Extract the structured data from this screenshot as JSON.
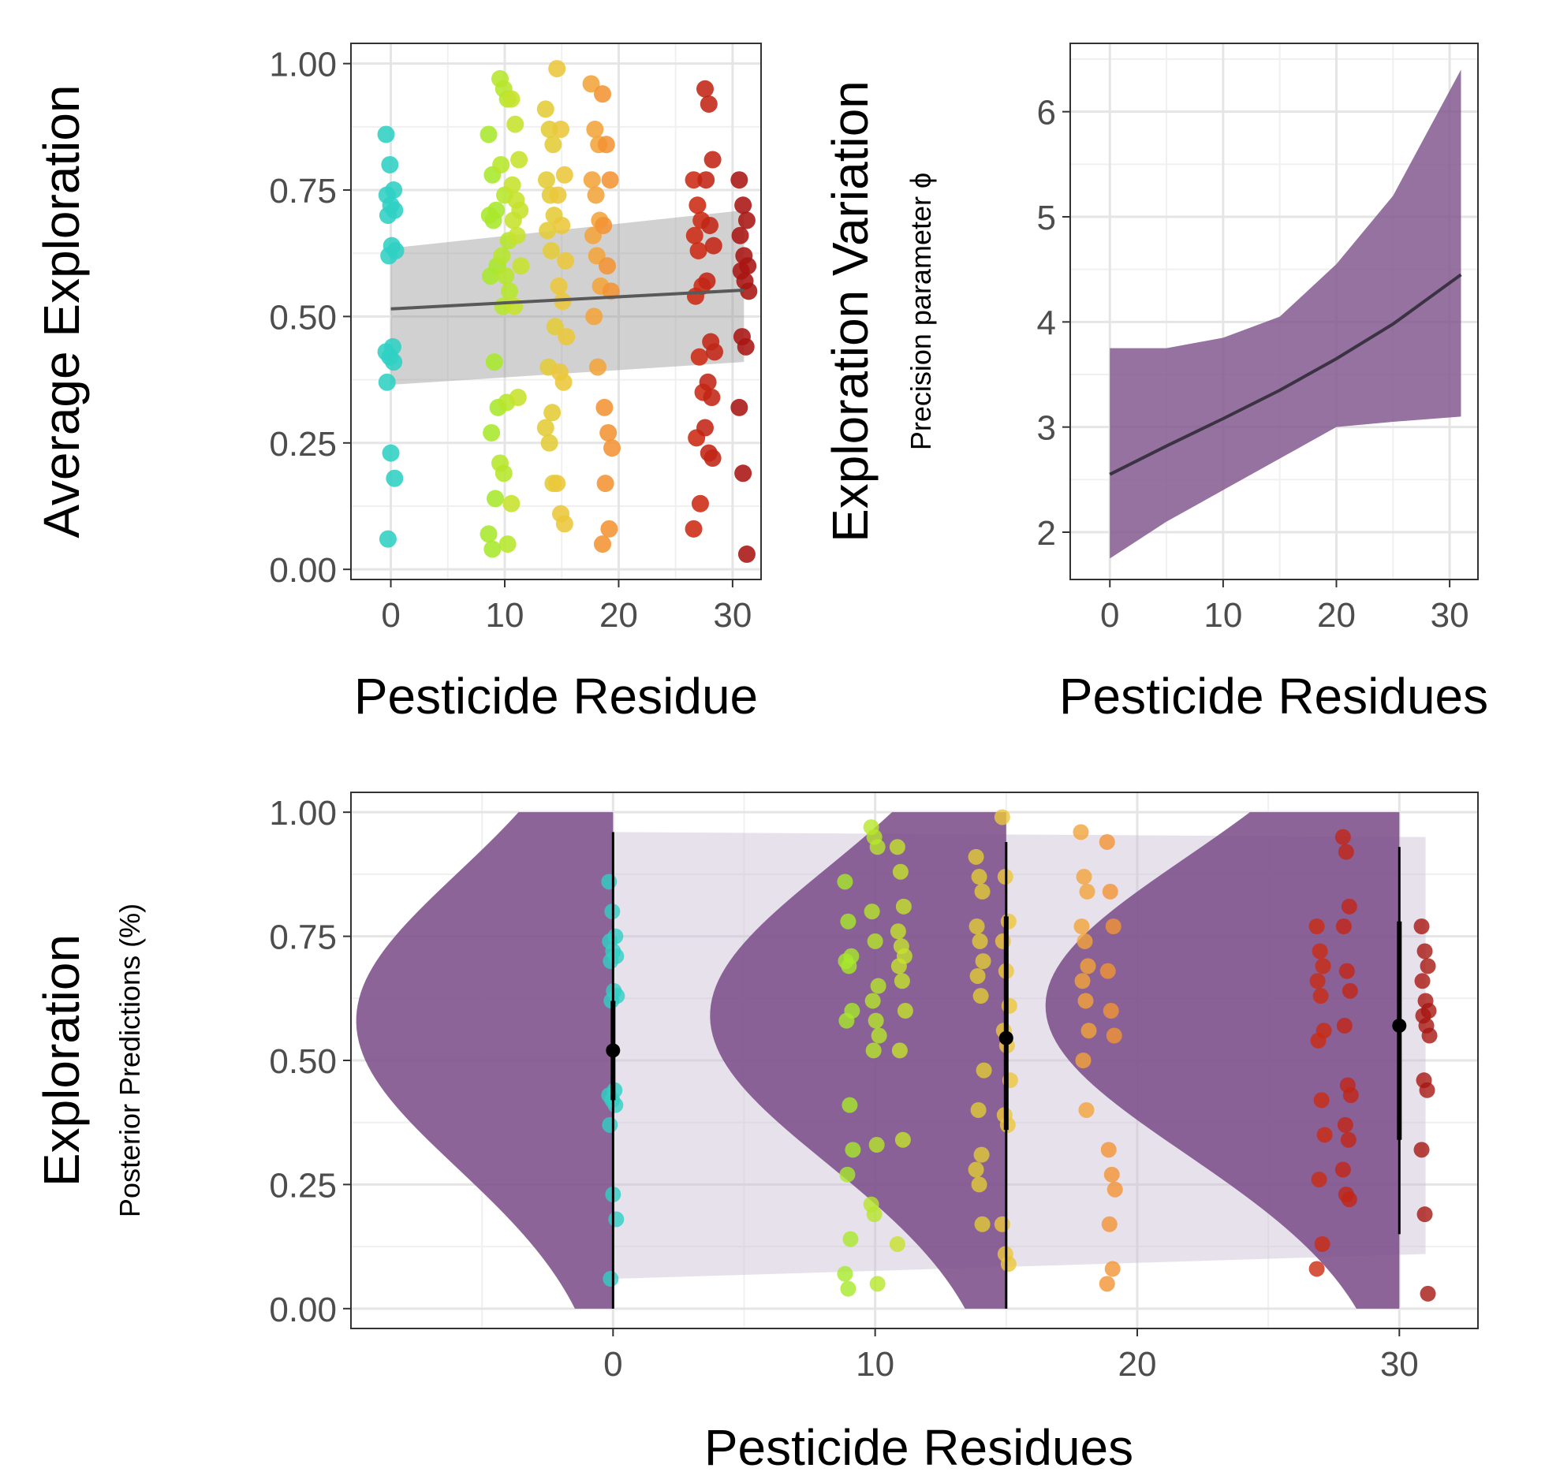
{
  "chart_data": [
    {
      "id": "avg_exploration",
      "type": "scatter",
      "xlabel": "Pesticide Residue",
      "ylabel": "Average Exploration",
      "xlim": [
        -3.5,
        32.5
      ],
      "ylim": [
        -0.02,
        1.04
      ],
      "xticks": [
        0,
        10,
        20,
        30
      ],
      "xtick_labels": [
        "0",
        "10",
        "20",
        "30"
      ],
      "yticks": [
        0,
        0.25,
        0.5,
        0.75,
        1.0
      ],
      "ytick_labels": [
        "0.00",
        "0.25",
        "0.50",
        "0.75",
        "1.00"
      ],
      "grid": true,
      "points": [
        {
          "x": 0,
          "ys": [
            0.86,
            0.8,
            0.75,
            0.74,
            0.72,
            0.71,
            0.7,
            0.64,
            0.63,
            0.62,
            0.44,
            0.43,
            0.42,
            0.41,
            0.37,
            0.23,
            0.18,
            0.06
          ],
          "color": "#2fd0c4"
        },
        {
          "x": 9,
          "ys": [
            0.86,
            0.78,
            0.71,
            0.7,
            0.69,
            0.6,
            0.58,
            0.41,
            0.32,
            0.27,
            0.14,
            0.07,
            0.04
          ],
          "color": "#a8e82c"
        },
        {
          "x": 10,
          "ys": [
            0.97,
            0.95,
            0.93,
            0.8,
            0.74,
            0.65,
            0.62,
            0.58,
            0.55,
            0.52,
            0.33,
            0.21,
            0.19,
            0.05
          ],
          "color": "#b6e62a"
        },
        {
          "x": 11,
          "ys": [
            0.93,
            0.88,
            0.81,
            0.76,
            0.73,
            0.71,
            0.69,
            0.66,
            0.6,
            0.52,
            0.34,
            0.13
          ],
          "color": "#c6e22c"
        },
        {
          "x": 14,
          "ys": [
            0.91,
            0.87,
            0.84,
            0.77,
            0.74,
            0.7,
            0.67,
            0.63,
            0.48,
            0.4,
            0.31,
            0.28,
            0.25,
            0.17
          ],
          "color": "#e2cc36"
        },
        {
          "x": 15,
          "ys": [
            0.99,
            0.87,
            0.78,
            0.74,
            0.68,
            0.61,
            0.56,
            0.53,
            0.46,
            0.39,
            0.37,
            0.17,
            0.11,
            0.09
          ],
          "color": "#ecc73a"
        },
        {
          "x": 18,
          "ys": [
            0.96,
            0.87,
            0.84,
            0.77,
            0.74,
            0.69,
            0.66,
            0.62,
            0.56,
            0.5,
            0.4
          ],
          "color": "#f2a43a"
        },
        {
          "x": 19,
          "ys": [
            0.94,
            0.84,
            0.77,
            0.68,
            0.6,
            0.55,
            0.32,
            0.27,
            0.24,
            0.17,
            0.08,
            0.05
          ],
          "color": "#f29334"
        },
        {
          "x": 27,
          "ys": [
            0.77,
            0.72,
            0.69,
            0.66,
            0.63,
            0.56,
            0.54,
            0.42,
            0.35,
            0.26,
            0.13,
            0.08
          ],
          "color": "#cc2a12"
        },
        {
          "x": 28,
          "ys": [
            0.95,
            0.92,
            0.81,
            0.77,
            0.68,
            0.64,
            0.57,
            0.45,
            0.43,
            0.37,
            0.34,
            0.28,
            0.23,
            0.22
          ],
          "color": "#c22616"
        },
        {
          "x": 31,
          "ys": [
            0.77,
            0.72,
            0.69,
            0.66,
            0.62,
            0.6,
            0.59,
            0.57,
            0.55,
            0.46,
            0.44,
            0.32,
            0.19,
            0.03
          ],
          "color": "#a81612"
        }
      ],
      "regression": {
        "x": [
          0,
          31
        ],
        "y": [
          0.515,
          0.552
        ],
        "lower": [
          0.365,
          0.41
        ],
        "upper": [
          0.635,
          0.71
        ],
        "line_color": "#595959",
        "band_color": "#999999"
      }
    },
    {
      "id": "exploration_variation",
      "type": "line",
      "xlabel": "Pesticide Residues",
      "ylabel": "Exploration Variation",
      "ylabel_sub": "Precision parameter ϕ",
      "xlim": [
        -3.5,
        32.5
      ],
      "ylim": [
        1.55,
        6.65
      ],
      "xticks": [
        0,
        10,
        20,
        30
      ],
      "xtick_labels": [
        "0",
        "10",
        "20",
        "30"
      ],
      "yticks": [
        2,
        3,
        4,
        5,
        6
      ],
      "ytick_labels": [
        "2",
        "3",
        "4",
        "5",
        "6"
      ],
      "grid": true,
      "x": [
        0,
        5,
        10,
        15,
        20,
        25,
        31
      ],
      "y": [
        2.55,
        2.82,
        3.08,
        3.35,
        3.65,
        3.98,
        4.45
      ],
      "lower": [
        1.75,
        2.1,
        2.4,
        2.7,
        3.0,
        3.05,
        3.1
      ],
      "upper": [
        3.75,
        3.75,
        3.85,
        4.05,
        4.55,
        5.2,
        6.4
      ],
      "line_color": "#3b3343",
      "band_color": "#83598f"
    },
    {
      "id": "posterior_predictions",
      "type": "scatter",
      "xlabel": "Pesticide Residues",
      "ylabel": "Exploration",
      "ylabel_sub": "Posterior Predictions (%)",
      "xlim": [
        -10,
        33
      ],
      "ylim": [
        -0.04,
        1.04
      ],
      "xticks": [
        0,
        10,
        20,
        30
      ],
      "xtick_labels": [
        "0",
        "10",
        "20",
        "30"
      ],
      "yticks": [
        0,
        0.25,
        0.5,
        0.75,
        1.0
      ],
      "ytick_labels": [
        "0.00",
        "0.25",
        "0.50",
        "0.75",
        "1.00"
      ],
      "grid": true,
      "prediction_band": {
        "x": [
          0,
          31
        ],
        "lower": [
          0.06,
          0.11
        ],
        "upper": [
          0.96,
          0.95
        ],
        "color": "#c9bcd4"
      },
      "half_eyes": [
        {
          "x": 0,
          "mean": 0.52,
          "inner": [
            0.42,
            0.62
          ],
          "outer": [
            0.0,
            0.96
          ],
          "width": 9.8,
          "peak": 0.58
        },
        {
          "x": 15,
          "mean": 0.545,
          "inner": [
            0.36,
            0.79
          ],
          "outer": [
            0.0,
            0.94
          ],
          "width": 11.3,
          "peak": 0.59
        },
        {
          "x": 30,
          "mean": 0.57,
          "inner": [
            0.34,
            0.78
          ],
          "outer": [
            0.15,
            0.93
          ],
          "width": 13.5,
          "peak": 0.61
        }
      ],
      "eye_color": "#7c4f8a",
      "mean_point_color": "#000000"
    }
  ]
}
